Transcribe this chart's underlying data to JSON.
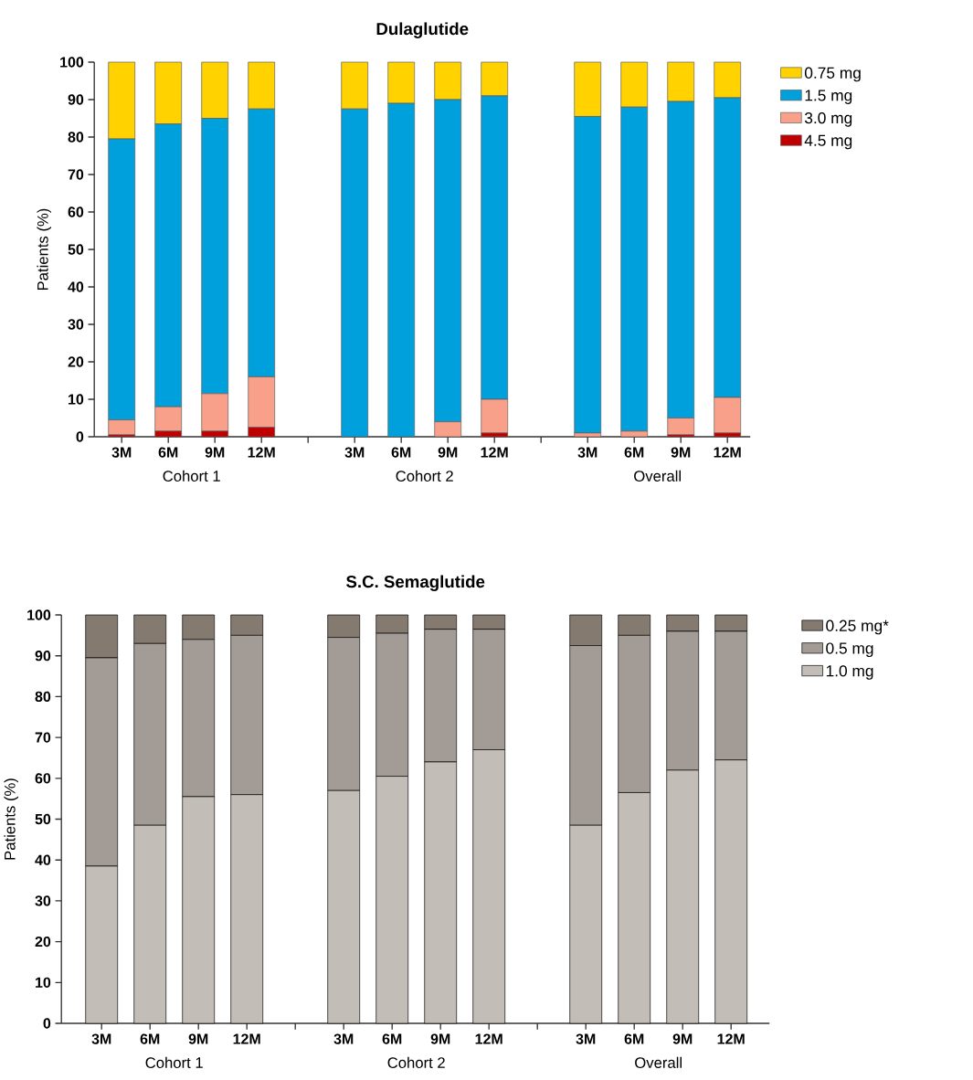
{
  "chart_data": [
    {
      "type": "bar",
      "title": "Dulaglutide",
      "ylabel": "Patients (%)",
      "stacked": true,
      "legend": "top right",
      "categories": [
        "3M",
        "6M",
        "9M",
        "12M",
        "3M",
        "6M",
        "9M",
        "12M",
        "3M",
        "6M",
        "9M",
        "12M"
      ],
      "ylim": [
        0,
        100
      ],
      "yticks": [
        0,
        10,
        20,
        30,
        40,
        50,
        60,
        70,
        80,
        90,
        100
      ],
      "annotations": [
        "Cohort 1",
        "Cohort 2",
        "Overall"
      ],
      "series": [
        {
          "name": "4.5 mg",
          "color": "#c00000",
          "values": [
            0.5,
            1.5,
            1.5,
            2.5,
            0,
            0,
            0,
            1,
            0,
            0,
            0.5,
            1
          ]
        },
        {
          "name": "3.0 mg",
          "color": "#f9a08a",
          "values": [
            4,
            6.5,
            10,
            13.5,
            0,
            0,
            4,
            9,
            1,
            1.5,
            4.5,
            9.5
          ]
        },
        {
          "name": "1.5 mg",
          "color": "#00a0dc",
          "values": [
            75,
            75.5,
            73.5,
            71.5,
            87.5,
            89,
            86,
            81,
            84.5,
            86.5,
            84.5,
            80
          ]
        },
        {
          "name": "0.75 mg",
          "color": "#ffd200",
          "values": [
            20.5,
            16.5,
            15,
            12.5,
            12.5,
            11,
            10,
            9,
            14.5,
            12,
            10.5,
            9.5
          ]
        }
      ]
    },
    {
      "type": "bar",
      "title": "S.C. Semaglutide",
      "ylabel": "Patients (%)",
      "stacked": true,
      "legend": "top right",
      "categories": [
        "3M",
        "6M",
        "9M",
        "12M",
        "3M",
        "6M",
        "9M",
        "12M",
        "3M",
        "6M",
        "9M",
        "12M"
      ],
      "ylim": [
        0,
        100
      ],
      "yticks": [
        0,
        10,
        20,
        30,
        40,
        50,
        60,
        70,
        80,
        90,
        100
      ],
      "annotations": [
        "Cohort 1",
        "Cohort 2",
        "Overall"
      ],
      "series": [
        {
          "name": "1.0 mg",
          "color": "#c3bdb8",
          "values": [
            38.5,
            48.5,
            55.5,
            56,
            57,
            60.5,
            64,
            67,
            48.5,
            56.5,
            62,
            64.5
          ]
        },
        {
          "name": "0.5 mg",
          "color": "#a39c96",
          "values": [
            51,
            44.5,
            38.5,
            39,
            37.5,
            35,
            32.5,
            29.5,
            44,
            38.5,
            34,
            31.5
          ]
        },
        {
          "name": "0.25 mg*",
          "color": "#847a70",
          "values": [
            10.5,
            7,
            6,
            5,
            5.5,
            4.5,
            3.5,
            3.5,
            7.5,
            5,
            4,
            4
          ]
        }
      ]
    }
  ]
}
